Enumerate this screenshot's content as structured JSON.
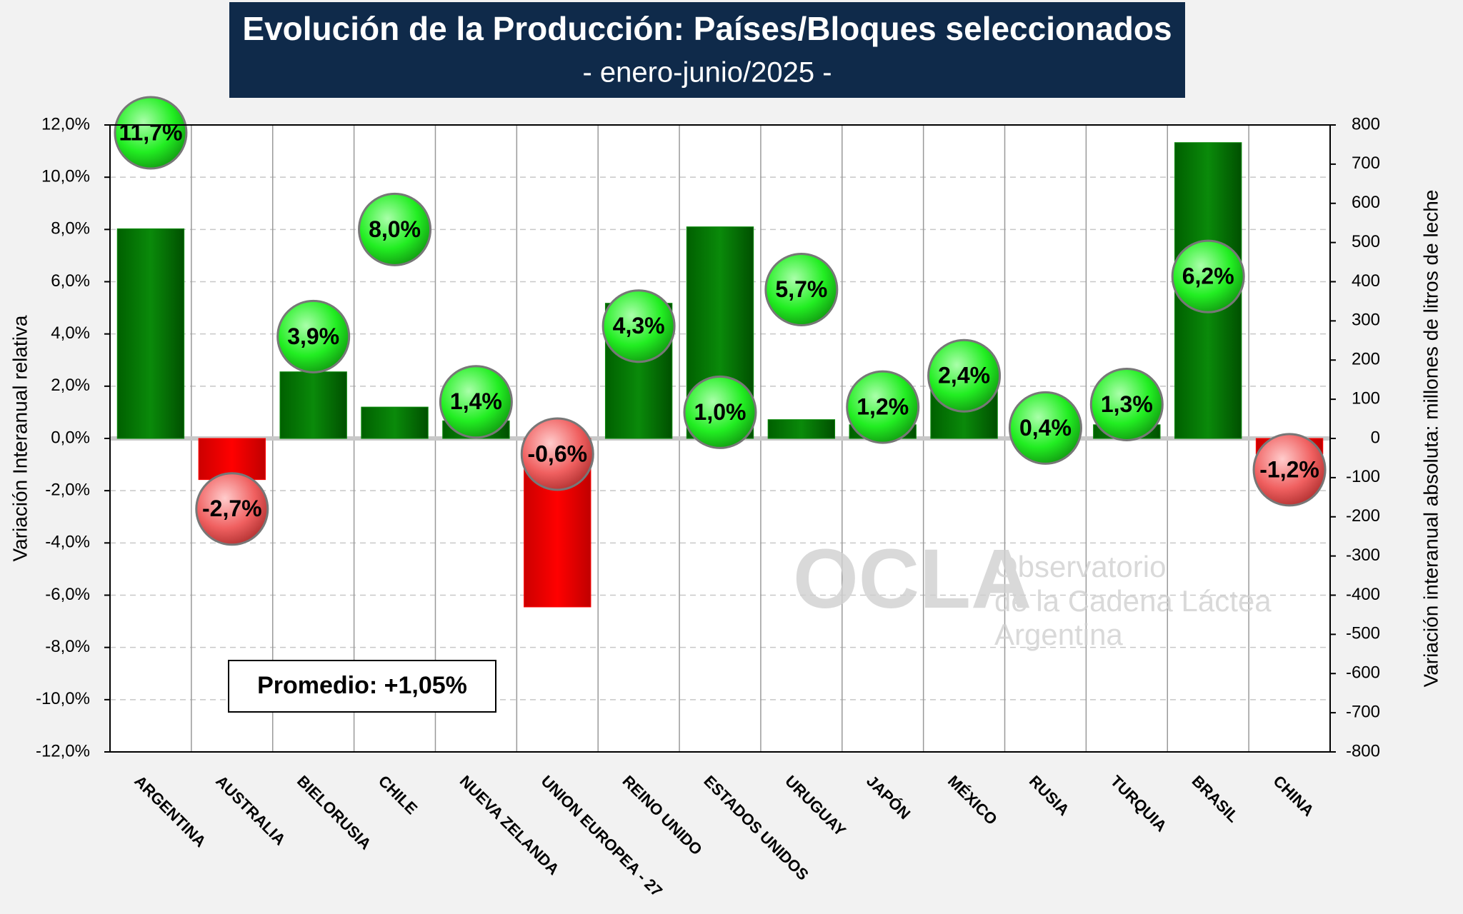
{
  "chart_data": {
    "type": "bar",
    "title": "Evolución de la Producción: Países/Bloques seleccionados",
    "subtitle": "- enero-junio/2025 -",
    "y_label": "Variación Interanual relativa",
    "y2_label": "Variación interanual absoluta: millones de litros de leche",
    "categories": [
      "ARGENTINA",
      "AUSTRALIA",
      "BIELORUSIA",
      "CHILE",
      "NUEVA ZELANDA",
      "UNION EUROPEA - 27",
      "REINO UNIDO",
      "ESTADOS UNIDOS",
      "URUGUAY",
      "JAPÓN",
      "MÉXICO",
      "RUSIA",
      "TURQUIA",
      "BRASIL",
      "CHINA"
    ],
    "series": [
      {
        "type": "bar",
        "axis": "y2",
        "values": [
          535,
          -105,
          170,
          80,
          45,
          -430,
          345,
          540,
          48,
          35,
          140,
          10,
          35,
          755,
          -40
        ],
        "positive_color": "#0a8a0a",
        "negative_color": "#ff0000"
      },
      {
        "type": "bubble",
        "axis": "y",
        "values": [
          11.7,
          -2.7,
          3.9,
          8.0,
          1.4,
          -0.6,
          4.3,
          1.0,
          5.7,
          1.2,
          2.4,
          0.4,
          1.3,
          6.2,
          -1.2
        ],
        "value_labels": [
          "11,7%",
          "-2,7%",
          "3,9%",
          "8,0%",
          "1,4%",
          "-0,6%",
          "4,3%",
          "1,0%",
          "5,7%",
          "1,2%",
          "2,4%",
          "0,4%",
          "1,3%",
          "6,2%",
          "-1,2%"
        ],
        "positive_color": "#22ee22",
        "negative_color": "#f06060"
      }
    ],
    "ylim": [
      -12,
      12
    ],
    "yticks": [
      {
        "value": -12,
        "label": "-12,0%"
      },
      {
        "value": -10,
        "label": "-10,0%"
      },
      {
        "value": -8,
        "label": "-8,0%"
      },
      {
        "value": -6,
        "label": "-6,0%"
      },
      {
        "value": -4,
        "label": "-4,0%"
      },
      {
        "value": -2,
        "label": "-2,0%"
      },
      {
        "value": 0,
        "label": "0,0%"
      },
      {
        "value": 2,
        "label": "2,0%"
      },
      {
        "value": 4,
        "label": "4,0%"
      },
      {
        "value": 6,
        "label": "6,0%"
      },
      {
        "value": 8,
        "label": "8,0%"
      },
      {
        "value": 10,
        "label": "10,0%"
      },
      {
        "value": 12,
        "label": "12,0%"
      }
    ],
    "y2lim": [
      -800,
      800
    ],
    "y2ticks": [
      -800,
      -700,
      -600,
      -500,
      -400,
      -300,
      -200,
      -100,
      0,
      100,
      200,
      300,
      400,
      500,
      600,
      700,
      800
    ],
    "grid": true,
    "annotations": [
      "Promedio: +1,05%"
    ],
    "watermark": {
      "logo": "OCLA",
      "lines": [
        "Observatorio",
        "de la Cadena Láctea",
        "Argentina"
      ]
    }
  }
}
